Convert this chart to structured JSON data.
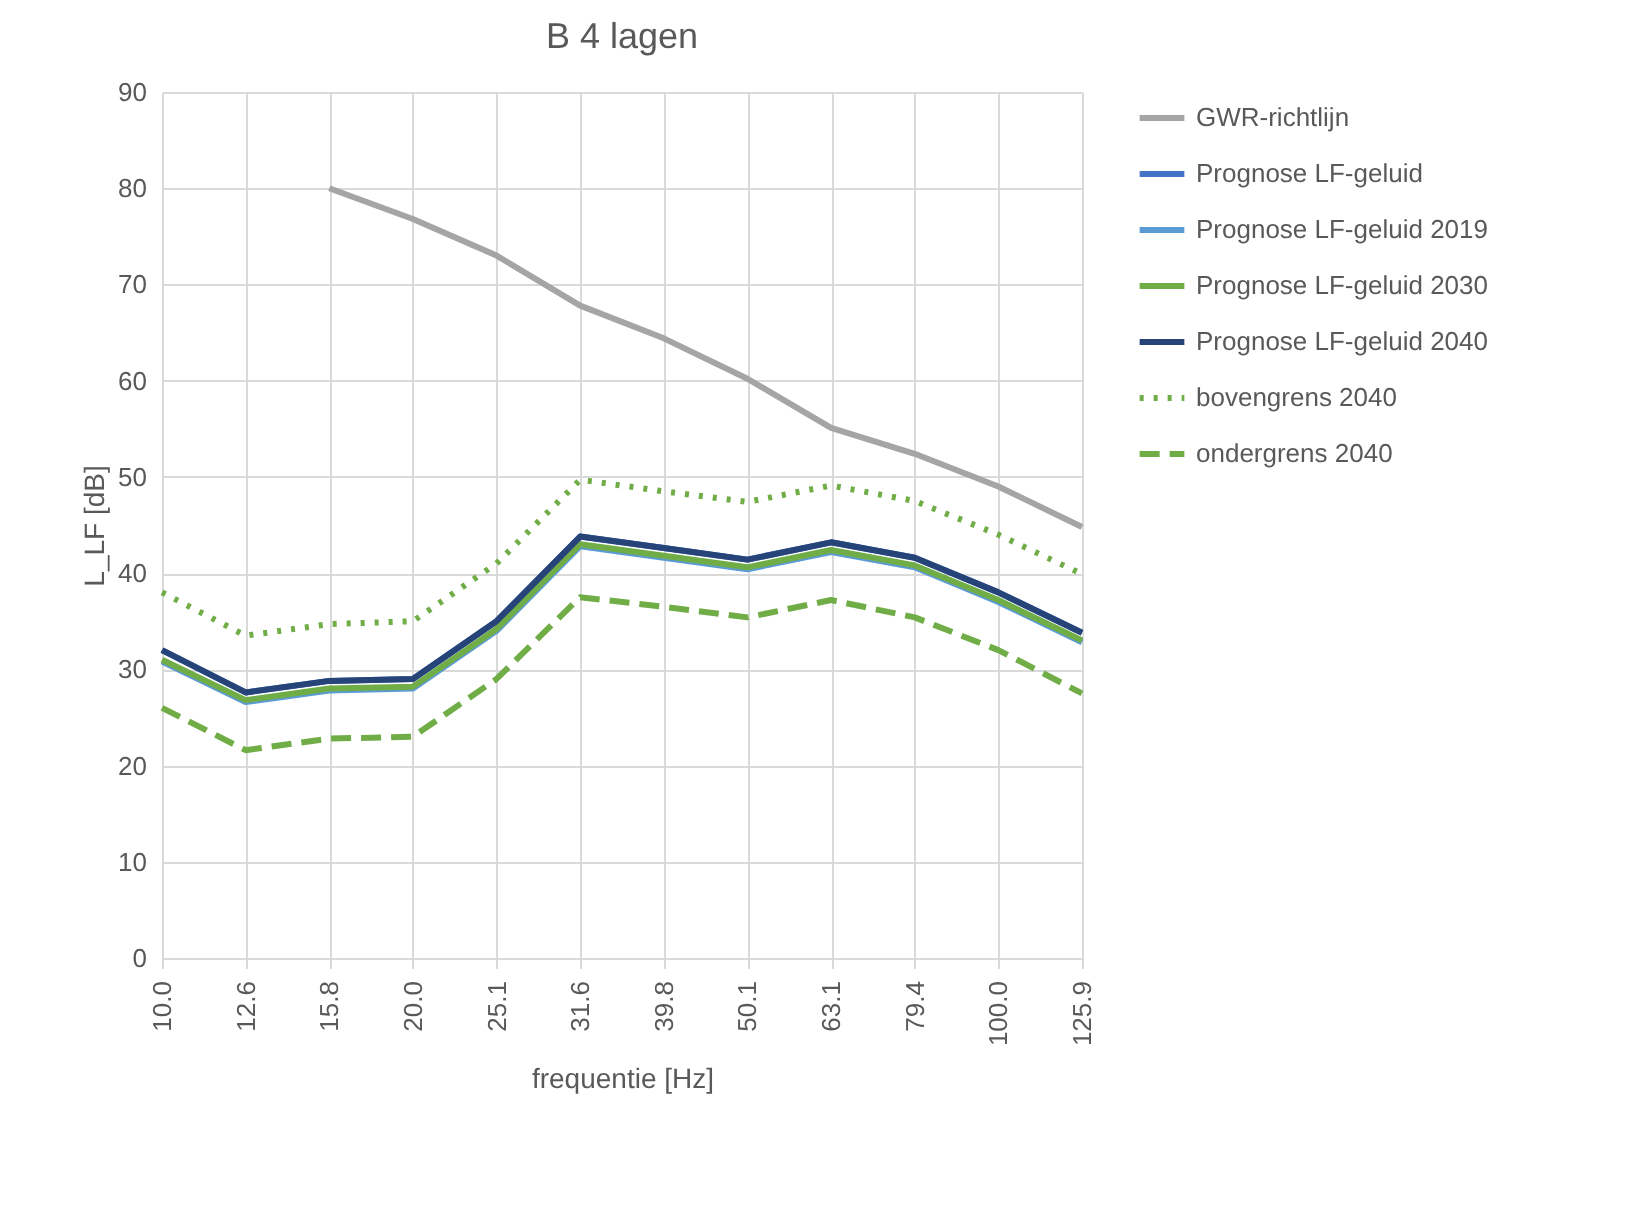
{
  "chart_data": {
    "type": "line",
    "title": "B 4 lagen",
    "xlabel": "frequentie [Hz]",
    "ylabel": "L_LF [dB]",
    "categories": [
      "10.0",
      "12.6",
      "15.8",
      "20.0",
      "25.1",
      "31.6",
      "39.8",
      "50.1",
      "63.1",
      "79.4",
      "100.0",
      "125.9"
    ],
    "series": [
      {
        "name": "GWR-richtlijn",
        "color": "#a5a5a5",
        "line_style": "solid",
        "values": [
          null,
          null,
          80,
          76.8,
          73,
          67.8,
          64.4,
          60.2,
          55.1,
          52.4,
          49,
          44.8
        ]
      },
      {
        "name": "Prognose LF-geluid",
        "color": "#4472c4",
        "line_style": "solid",
        "values": [
          32,
          27.6,
          28.8,
          29,
          35,
          43.8,
          42.6,
          41.4,
          43.2,
          41.6,
          38,
          33.8
        ]
      },
      {
        "name": "Prognose LF-geluid 2019",
        "color": "#5b9bd5",
        "line_style": "solid",
        "values": [
          30.8,
          26.6,
          27.8,
          28,
          34,
          42.8,
          41.6,
          40.4,
          42.2,
          40.6,
          37,
          32.8
        ]
      },
      {
        "name": "Prognose LF-geluid 2030",
        "color": "#70ad47",
        "line_style": "solid",
        "values": [
          31,
          26.8,
          28,
          28.2,
          34.2,
          43,
          41.8,
          40.6,
          42.4,
          40.8,
          37.2,
          33
        ]
      },
      {
        "name": "Prognose LF-geluid 2040",
        "color": "#264478",
        "line_style": "solid",
        "values": [
          32,
          27.6,
          28.8,
          29,
          35,
          43.8,
          42.6,
          41.4,
          43.2,
          41.6,
          38,
          33.8
        ]
      },
      {
        "name": "bovengrens 2040",
        "color": "#70ad47",
        "line_style": "dotted",
        "values": [
          38,
          33.5,
          34.7,
          35,
          41,
          49.7,
          48.5,
          47.4,
          49.1,
          47.5,
          44,
          39.9
        ]
      },
      {
        "name": "ondergrens 2040",
        "color": "#70ad47",
        "line_style": "dashed",
        "values": [
          26,
          21.6,
          22.8,
          23,
          29,
          37.5,
          36.5,
          35.4,
          37.2,
          35.4,
          32,
          27.5
        ]
      }
    ],
    "ylim": [
      0,
      90
    ],
    "yticks": [
      0,
      10,
      20,
      30,
      40,
      50,
      60,
      70,
      80,
      90
    ],
    "grid": true,
    "legend": "right",
    "marker": "none"
  }
}
